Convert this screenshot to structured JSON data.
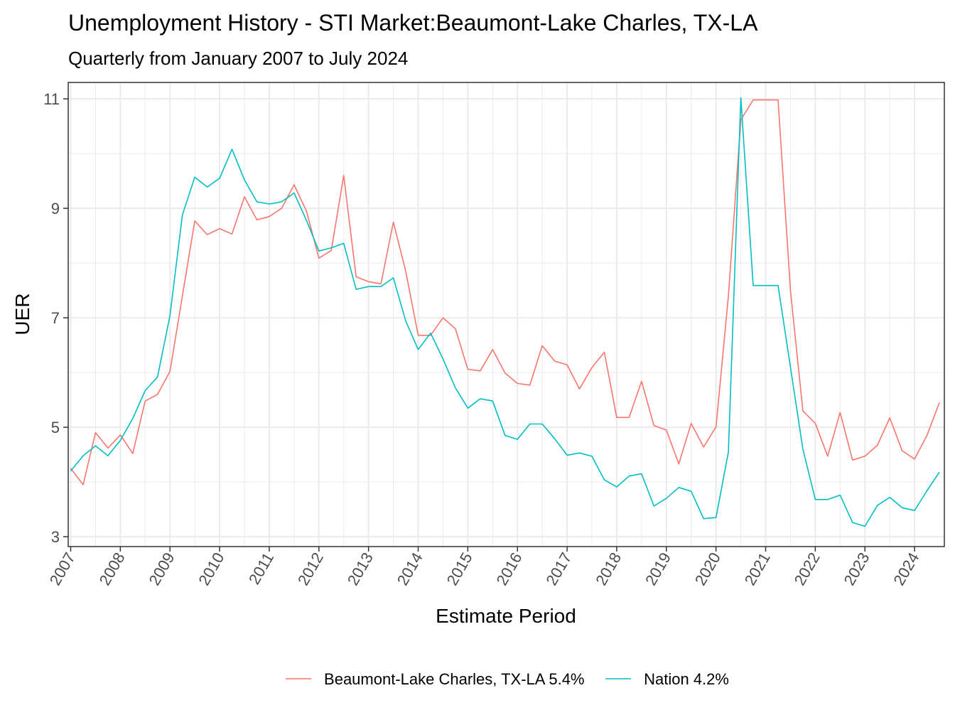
{
  "chart_data": {
    "type": "line",
    "title": "Unemployment History - STI Market:Beaumont-Lake Charles, TX-LA",
    "subtitle": "Quarterly from January 2007 to July 2024",
    "xlabel": "Estimate Period",
    "ylabel": "UER",
    "xlim": [
      2006.95,
      2024.6
    ],
    "ylim": [
      2.82,
      11.3
    ],
    "y_ticks": [
      3,
      5,
      7,
      9,
      11
    ],
    "x_ticks": [
      2007,
      2008,
      2009,
      2010,
      2011,
      2012,
      2013,
      2014,
      2015,
      2016,
      2017,
      2018,
      2019,
      2020,
      2021,
      2022,
      2023,
      2024
    ],
    "grid": true,
    "legend_position": "bottom",
    "x": [
      2007.0,
      2007.25,
      2007.5,
      2007.75,
      2008.0,
      2008.25,
      2008.5,
      2008.75,
      2009.0,
      2009.25,
      2009.5,
      2009.75,
      2010.0,
      2010.25,
      2010.5,
      2010.75,
      2011.0,
      2011.25,
      2011.5,
      2011.75,
      2012.0,
      2012.25,
      2012.5,
      2012.75,
      2013.0,
      2013.25,
      2013.5,
      2013.75,
      2014.0,
      2014.25,
      2014.5,
      2014.75,
      2015.0,
      2015.25,
      2015.5,
      2015.75,
      2016.0,
      2016.25,
      2016.5,
      2016.75,
      2017.0,
      2017.25,
      2017.5,
      2017.75,
      2018.0,
      2018.25,
      2018.5,
      2018.75,
      2019.0,
      2019.25,
      2019.5,
      2019.75,
      2020.0,
      2020.25,
      2020.5,
      2020.75,
      2021.0,
      2021.25,
      2021.5,
      2021.75,
      2022.0,
      2022.25,
      2022.5,
      2022.75,
      2023.0,
      2023.25,
      2023.5,
      2023.75,
      2024.0,
      2024.25,
      2024.5
    ],
    "series": [
      {
        "name": "Beaumont-Lake Charles, TX-LA 5.4%",
        "color": "#F8766D",
        "values": [
          4.25,
          3.95,
          4.9,
          4.62,
          4.86,
          4.52,
          5.48,
          5.6,
          6.02,
          7.4,
          8.77,
          8.52,
          8.63,
          8.53,
          9.21,
          8.79,
          8.85,
          9.0,
          9.43,
          8.95,
          8.09,
          8.23,
          9.6,
          7.75,
          7.66,
          7.62,
          8.75,
          7.85,
          6.68,
          6.68,
          7.0,
          6.8,
          6.06,
          6.03,
          6.42,
          5.99,
          5.8,
          5.77,
          6.49,
          6.21,
          6.14,
          5.7,
          6.09,
          6.37,
          5.18,
          5.18,
          5.84,
          5.03,
          4.95,
          4.33,
          5.07,
          4.64,
          5.01,
          7.4,
          10.62,
          10.98,
          10.98,
          10.98,
          7.5,
          5.3,
          5.07,
          4.47,
          5.27,
          4.4,
          4.47,
          4.67,
          5.17,
          4.57,
          4.42,
          4.85,
          5.45
        ]
      },
      {
        "name": "Nation 4.2%",
        "color": "#00BFC4",
        "values": [
          4.2,
          4.48,
          4.66,
          4.48,
          4.76,
          5.16,
          5.67,
          5.92,
          7.04,
          8.88,
          9.57,
          9.39,
          9.55,
          10.08,
          9.52,
          9.12,
          9.08,
          9.12,
          9.28,
          8.78,
          8.22,
          8.28,
          8.36,
          7.52,
          7.57,
          7.57,
          7.73,
          6.94,
          6.42,
          6.72,
          6.25,
          5.72,
          5.35,
          5.52,
          5.48,
          4.85,
          4.78,
          5.06,
          5.06,
          4.79,
          4.49,
          4.53,
          4.47,
          4.04,
          3.91,
          4.11,
          4.15,
          3.56,
          3.7,
          3.9,
          3.83,
          3.33,
          3.35,
          4.55,
          11.02,
          7.59,
          7.59,
          7.59,
          6.1,
          4.6,
          3.68,
          3.68,
          3.76,
          3.26,
          3.19,
          3.57,
          3.72,
          3.53,
          3.48,
          3.84,
          4.18
        ]
      }
    ]
  }
}
